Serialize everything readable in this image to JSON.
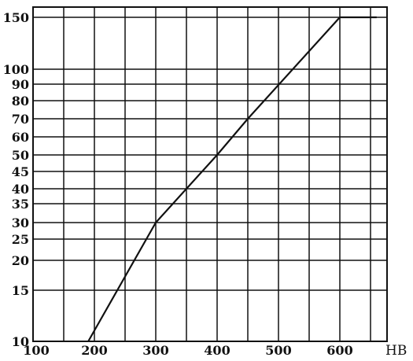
{
  "chart_data": {
    "type": "line",
    "title": "",
    "xlabel": "HB",
    "ylabel": "",
    "x_ticks": [
      100,
      200,
      300,
      400,
      500,
      600
    ],
    "x_tick_labels": [
      "100",
      "200",
      "300",
      "400",
      "500",
      "600"
    ],
    "y_ticks": [
      10,
      15,
      20,
      25,
      30,
      35,
      40,
      45,
      50,
      60,
      70,
      80,
      90,
      100,
      150
    ],
    "y_tick_labels": [
      "10",
      "15",
      "20",
      "25",
      "30",
      "35",
      "40",
      "45",
      "50",
      "60",
      "70",
      "80",
      "90",
      "100",
      "150"
    ],
    "xlim": [
      100,
      660
    ],
    "ylim": [
      10,
      150
    ],
    "grid": true,
    "series": [
      {
        "x": [
          190,
          300,
          400,
          450,
          600,
          660
        ],
        "y": [
          10,
          30,
          50,
          70,
          150,
          150
        ]
      }
    ]
  }
}
